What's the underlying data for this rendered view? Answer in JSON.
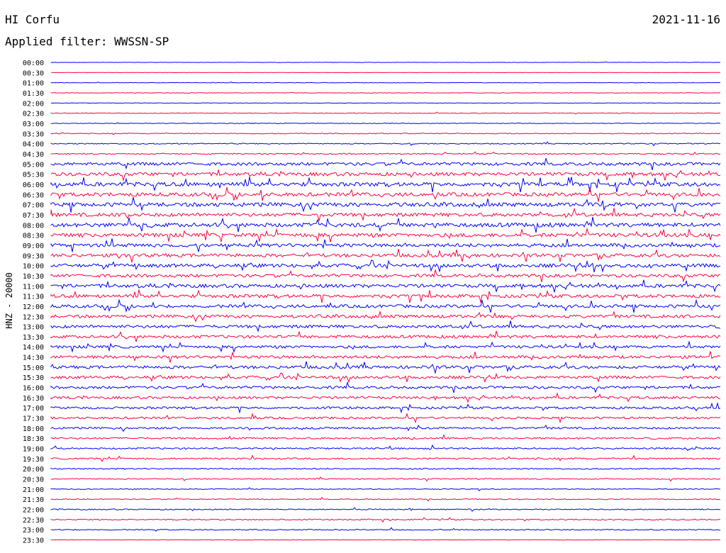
{
  "header": {
    "station": "HI Corfu",
    "date": "2021-11-16",
    "filter_label": "Applied filter:",
    "filter_value": "WWSSN-SP"
  },
  "chart_data": {
    "type": "line",
    "title": "HI Corfu",
    "ylabel": "HNZ - 20000",
    "row_labels": [
      "00:00",
      "00:30",
      "01:00",
      "01:30",
      "02:00",
      "02:30",
      "03:00",
      "03:30",
      "04:00",
      "04:30",
      "05:00",
      "05:30",
      "06:00",
      "06:30",
      "07:00",
      "07:30",
      "08:00",
      "08:30",
      "09:00",
      "09:30",
      "10:00",
      "10:30",
      "11:00",
      "11:30",
      "12:00",
      "12:30",
      "13:00",
      "13:30",
      "14:00",
      "14:30",
      "15:00",
      "15:30",
      "16:00",
      "16:30",
      "17:00",
      "17:30",
      "18:00",
      "18:30",
      "19:00",
      "19:30",
      "20:00",
      "20:30",
      "21:00",
      "21:30",
      "22:00",
      "22:30",
      "23:00",
      "23:30"
    ],
    "activity_level": [
      0.3,
      0.3,
      0.5,
      0.6,
      0.5,
      0.7,
      0.8,
      1.0,
      1.2,
      1.4,
      3.5,
      4.0,
      4.5,
      4.2,
      4.5,
      4.0,
      4.6,
      4.2,
      4.0,
      3.8,
      4.0,
      3.6,
      4.0,
      3.8,
      3.6,
      3.5,
      3.4,
      3.3,
      3.0,
      3.3,
      3.4,
      3.2,
      3.0,
      2.8,
      2.6,
      2.4,
      2.2,
      2.0,
      1.8,
      1.8,
      1.4,
      1.2,
      1.0,
      1.0,
      1.2,
      1.4,
      1.2,
      0.4
    ],
    "series_colors": [
      "#0000ff",
      "#ff0040"
    ]
  }
}
